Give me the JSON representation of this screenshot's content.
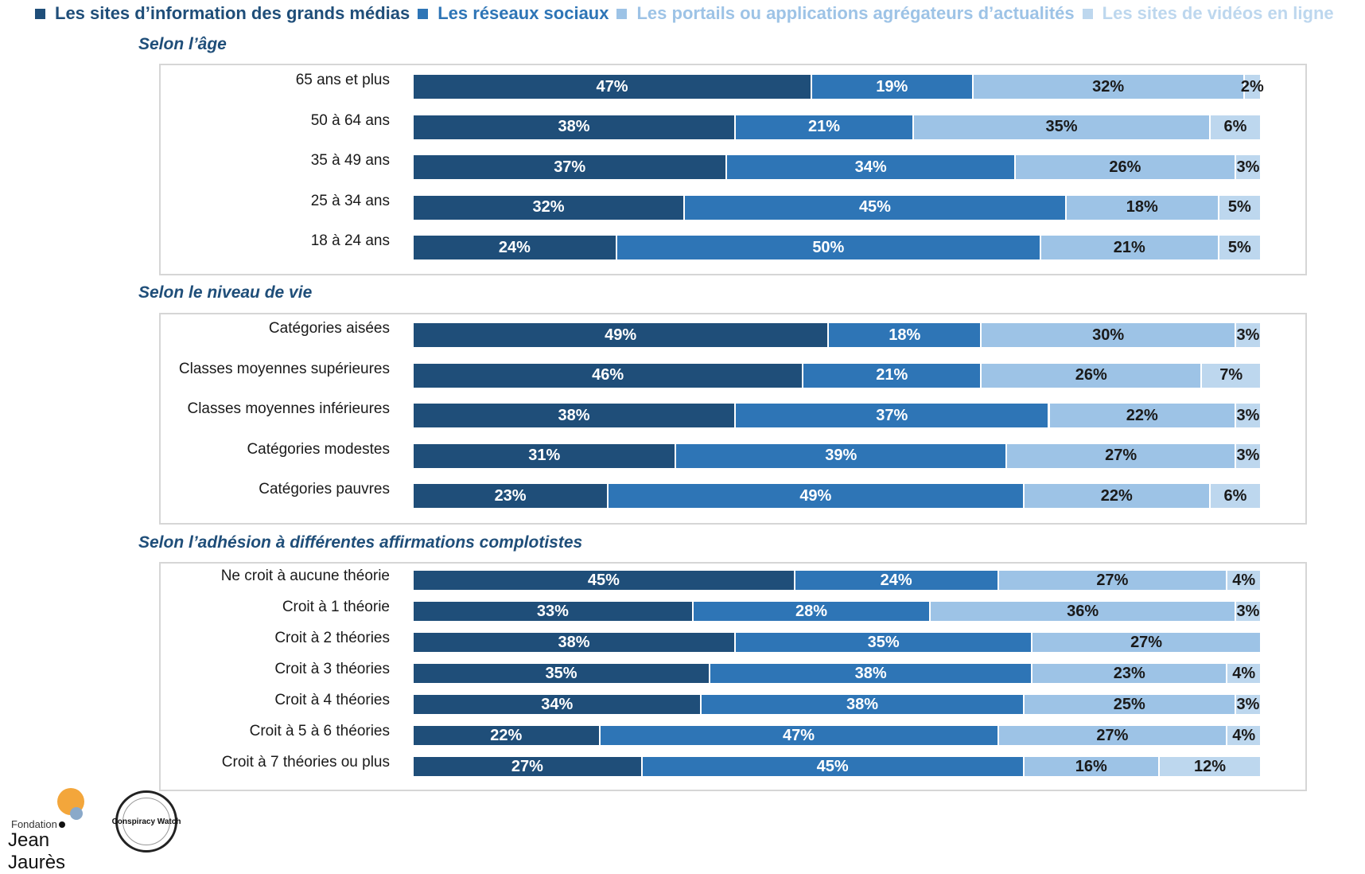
{
  "legend": [
    {
      "label": "Les sites d’information des grands médias",
      "color": "#1f4e79"
    },
    {
      "label": "Les réseaux sociaux",
      "color": "#2e75b6"
    },
    {
      "label": "Les portails ou applications agrégateurs d’actualités",
      "color": "#9dc3e6"
    },
    {
      "label": "Les sites de vidéos en ligne",
      "color": "#bdd7ee"
    }
  ],
  "logos": {
    "fondation_small": "Fondation",
    "fondation_big": "Jean Jaurès",
    "conspiracy": "Conspiracy Watch"
  },
  "chart_data": {
    "type": "bar",
    "orientation": "horizontal",
    "stacked": true,
    "percent": true,
    "series_names": [
      "Les sites d’information des grands médias",
      "Les réseaux sociaux",
      "Les portails ou applications agrégateurs d’actualités",
      "Les sites de vidéos en ligne"
    ],
    "groups": [
      {
        "title": "Selon l’âge",
        "categories": [
          "65 ans et plus",
          "50 à 64 ans",
          "35 à 49 ans",
          "25 à 34 ans",
          "18 à 24 ans"
        ],
        "values": [
          [
            47,
            19,
            32,
            2
          ],
          [
            38,
            21,
            35,
            6
          ],
          [
            37,
            34,
            26,
            3
          ],
          [
            32,
            45,
            18,
            5
          ],
          [
            24,
            50,
            21,
            5
          ]
        ]
      },
      {
        "title": "Selon le niveau de vie",
        "categories": [
          "Catégories aisées",
          "Classes moyennes supérieures",
          "Classes moyennes inférieures",
          "Catégories modestes",
          "Catégories pauvres"
        ],
        "values": [
          [
            49,
            18,
            30,
            3
          ],
          [
            46,
            21,
            26,
            7
          ],
          [
            38,
            37,
            22,
            3
          ],
          [
            31,
            39,
            27,
            3
          ],
          [
            23,
            49,
            22,
            6
          ]
        ]
      },
      {
        "title": "Selon l’adhésion à différentes affirmations complotistes",
        "categories": [
          "Ne croit à aucune théorie",
          "Croit à 1 théorie",
          "Croit à 2 théories",
          "Croit à 3 théories",
          "Croit à 4 théories",
          "Croit à 5 à 6 théories",
          "Croit à 7 théories ou plus"
        ],
        "values": [
          [
            45,
            24,
            27,
            4
          ],
          [
            33,
            28,
            36,
            3
          ],
          [
            38,
            35,
            27,
            null
          ],
          [
            35,
            38,
            23,
            4
          ],
          [
            34,
            38,
            25,
            3
          ],
          [
            22,
            47,
            27,
            4
          ],
          [
            27,
            45,
            16,
            12
          ]
        ]
      }
    ]
  }
}
